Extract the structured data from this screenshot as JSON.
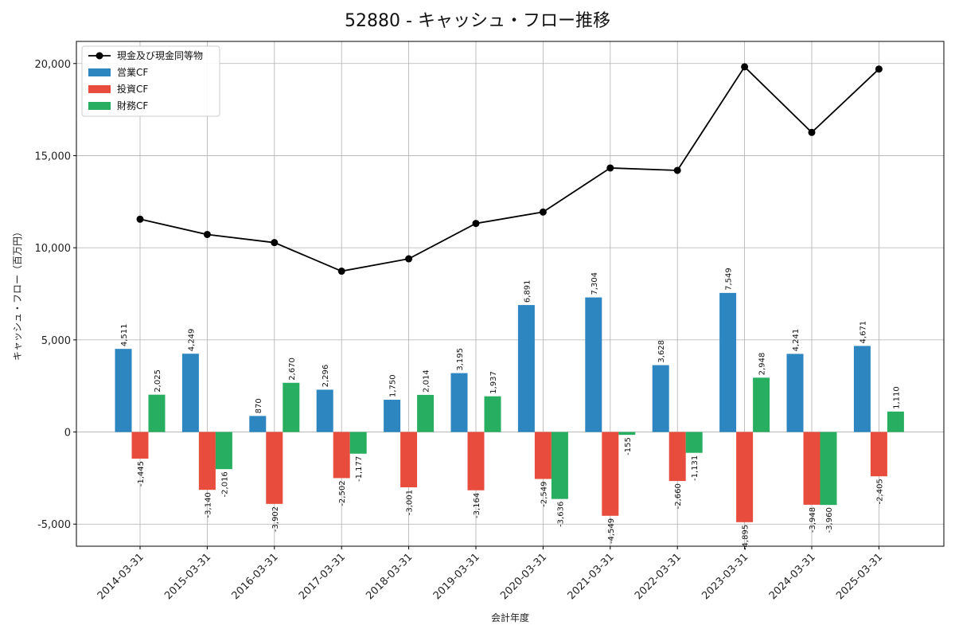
{
  "chart_data": {
    "type": "bar+line",
    "title": "52880 - キャッシュ・フロー推移",
    "xlabel": "会計年度",
    "ylabel": "キャッシュ・フロー（百万円）",
    "ylim": [
      -6200,
      21200
    ],
    "yticks": [
      -5000,
      0,
      5000,
      10000,
      15000,
      20000
    ],
    "ytick_labels": [
      "-5,000",
      "0",
      "5,000",
      "10,000",
      "15,000",
      "20,000"
    ],
    "grid": true,
    "legend_position": "top-left",
    "categories": [
      "2014-03-31",
      "2015-03-31",
      "2016-03-31",
      "2017-03-31",
      "2018-03-31",
      "2019-03-31",
      "2020-03-31",
      "2021-03-31",
      "2022-03-31",
      "2023-03-31",
      "2024-03-31",
      "2025-03-31"
    ],
    "series": [
      {
        "name": "営業CF",
        "kind": "bar",
        "color": "#2e86c1",
        "values": [
          4511,
          4249,
          870,
          2296,
          1750,
          3195,
          6891,
          7304,
          3628,
          7549,
          4241,
          4671
        ],
        "labels": [
          "4,511",
          "4,249",
          "870",
          "2,296",
          "1,750",
          "3,195",
          "6,891",
          "7,304",
          "3,628",
          "7,549",
          "4,241",
          "4,671"
        ]
      },
      {
        "name": "投資CF",
        "kind": "bar",
        "color": "#e74c3c",
        "values": [
          -1445,
          -3140,
          -3902,
          -2502,
          -3001,
          -3164,
          -2549,
          -4549,
          -2660,
          -4895,
          -3948,
          -2405
        ],
        "labels": [
          "-1,445",
          "-3,140",
          "-3,902",
          "-2,502",
          "-3,001",
          "-3,164",
          "-2,549",
          "-4,549",
          "-2,660",
          "-4,895",
          "-3,948",
          "-2,405"
        ]
      },
      {
        "name": "財務CF",
        "kind": "bar",
        "color": "#27ae60",
        "values": [
          2025,
          -2016,
          2670,
          -1177,
          2014,
          1937,
          -3636,
          -155,
          -1131,
          2948,
          -3960,
          1110
        ],
        "labels": [
          "2,025",
          "-2,016",
          "2,670",
          "-1,177",
          "2,014",
          "1,937",
          "-3,636",
          "-155",
          "-1,131",
          "2,948",
          "-3,960",
          "1,110"
        ]
      },
      {
        "name": "現金及び現金同等物",
        "kind": "line",
        "color": "#000000",
        "values": [
          11550,
          10720,
          10280,
          8730,
          9400,
          11320,
          11940,
          14330,
          14200,
          19820,
          16260,
          19700
        ]
      }
    ]
  }
}
